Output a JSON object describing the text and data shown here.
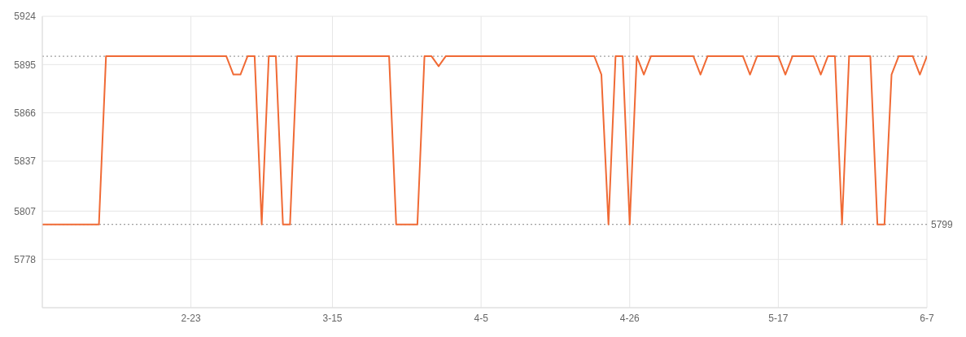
{
  "chart_data": {
    "type": "line",
    "x": [
      "--02-02",
      "--02-03",
      "--02-04",
      "--02-05",
      "--02-06",
      "--02-07",
      "--02-08",
      "--02-09",
      "--02-10",
      "--02-11",
      "--02-12",
      "--02-13",
      "--02-14",
      "--02-15",
      "--02-16",
      "--02-17",
      "--02-18",
      "--02-19",
      "--02-20",
      "--02-21",
      "--02-22",
      "--02-23",
      "--02-24",
      "--02-25",
      "--02-26",
      "--02-27",
      "--02-28",
      "--03-01",
      "--03-02",
      "--03-03",
      "--03-04",
      "--03-05",
      "--03-06",
      "--03-07",
      "--03-08",
      "--03-09",
      "--03-10",
      "--03-11",
      "--03-12",
      "--03-13",
      "--03-14",
      "--03-15",
      "--03-16",
      "--03-17",
      "--03-18",
      "--03-19",
      "--03-20",
      "--03-21",
      "--03-22",
      "--03-23",
      "--03-24",
      "--03-25",
      "--03-26",
      "--03-27",
      "--03-28",
      "--03-29",
      "--03-30",
      "--03-31",
      "--04-01",
      "--04-02",
      "--04-03",
      "--04-04",
      "--04-05",
      "--04-06",
      "--04-07",
      "--04-08",
      "--04-09",
      "--04-10",
      "--04-11",
      "--04-12",
      "--04-13",
      "--04-14",
      "--04-15",
      "--04-16",
      "--04-17",
      "--04-18",
      "--04-19",
      "--04-20",
      "--04-21",
      "--04-22",
      "--04-23",
      "--04-24",
      "--04-25",
      "--04-26",
      "--04-27",
      "--04-28",
      "--04-29",
      "--04-30",
      "--05-01",
      "--05-02",
      "--05-03",
      "--05-04",
      "--05-05",
      "--05-06",
      "--05-07",
      "--05-08",
      "--05-09",
      "--05-10",
      "--05-11",
      "--05-12",
      "--05-13",
      "--05-14",
      "--05-15",
      "--05-16",
      "--05-17",
      "--05-18",
      "--05-19",
      "--05-20",
      "--05-21",
      "--05-22",
      "--05-23",
      "--05-24",
      "--05-25",
      "--05-26",
      "--05-27",
      "--05-28",
      "--05-29",
      "--05-30",
      "--05-31",
      "--06-01",
      "--06-02",
      "--06-03",
      "--06-04",
      "--06-05",
      "--06-06",
      "--06-07"
    ],
    "series": [
      {
        "color": "#f06a35",
        "values": [
          5799,
          5799,
          5799,
          5799,
          5799,
          5799,
          5799,
          5799,
          5799,
          5900,
          5900,
          5900,
          5900,
          5900,
          5900,
          5900,
          5900,
          5900,
          5900,
          5900,
          5900,
          5900,
          5900,
          5900,
          5900,
          5900,
          5900,
          5889,
          5889,
          5900,
          5900,
          5799,
          5900,
          5900,
          5799,
          5799,
          5900,
          5900,
          5900,
          5900,
          5900,
          5900,
          5900,
          5900,
          5900,
          5900,
          5900,
          5900,
          5900,
          5900,
          5799,
          5799,
          5799,
          5799,
          5900,
          5900,
          5894,
          5900,
          5900,
          5900,
          5900,
          5900,
          5900,
          5900,
          5900,
          5900,
          5900,
          5900,
          5900,
          5900,
          5900,
          5900,
          5900,
          5900,
          5900,
          5900,
          5900,
          5900,
          5900,
          5889,
          5799,
          5900,
          5900,
          5799,
          5900,
          5889,
          5900,
          5900,
          5900,
          5900,
          5900,
          5900,
          5900,
          5889,
          5900,
          5900,
          5900,
          5900,
          5900,
          5900,
          5889,
          5900,
          5900,
          5900,
          5900,
          5889,
          5900,
          5900,
          5900,
          5900,
          5889,
          5900,
          5900,
          5799,
          5900,
          5900,
          5900,
          5900,
          5799,
          5799,
          5889,
          5900,
          5900,
          5900,
          5889,
          5900
        ]
      }
    ],
    "xlim": [
      "--02-02",
      "--06-07"
    ],
    "xticks": [
      {
        "value": "--02-23",
        "label": "2-23"
      },
      {
        "value": "--03-15",
        "label": "3-15"
      },
      {
        "value": "--04-05",
        "label": "4-5"
      },
      {
        "value": "--04-26",
        "label": "4-26"
      },
      {
        "value": "--05-17",
        "label": "5-17"
      },
      {
        "value": "--06-07",
        "label": "6-7"
      }
    ],
    "ylim": [
      5749,
      5924
    ],
    "yticks": [
      5778,
      5807,
      5837,
      5866,
      5895,
      5924
    ],
    "ref_lines": [
      {
        "axis": "y",
        "value": 5900,
        "color": "#888888",
        "line_style": "dotted"
      },
      {
        "axis": "y",
        "value": 5799,
        "label": "5799",
        "color": "#888888",
        "line_style": "dotted"
      }
    ],
    "grid": true,
    "legend": false,
    "marker": "none",
    "line_style": "solid"
  }
}
